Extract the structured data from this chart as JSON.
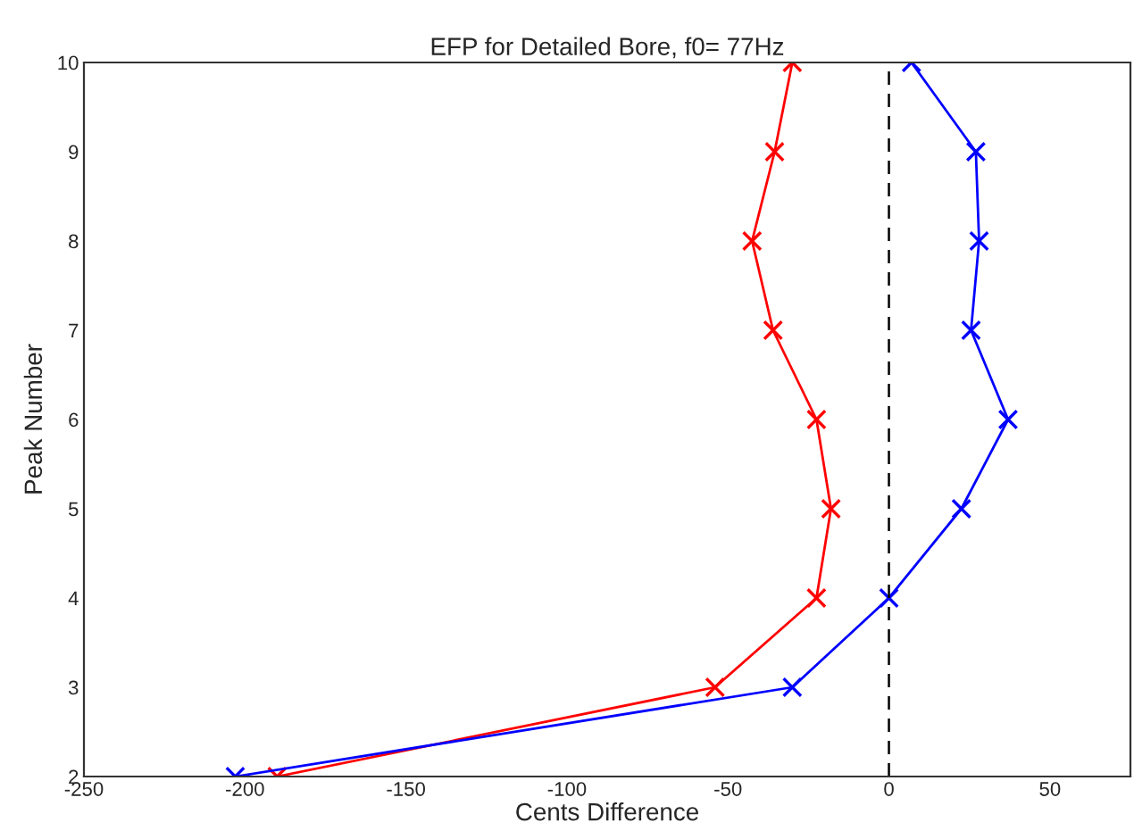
{
  "chart_data": {
    "type": "line",
    "title": "EFP for Detailed Bore, f0= 77Hz",
    "xlabel": "Cents Difference",
    "ylabel": "Peak Number",
    "orientation": "horizontal",
    "marker": "cross",
    "line_style": "solid",
    "grid": false,
    "xlim": [
      -250,
      75
    ],
    "xticks": [
      -250,
      -200,
      -150,
      -100,
      -50,
      0,
      50
    ],
    "ylim": [
      2,
      10
    ],
    "yticks": [
      2,
      3,
      4,
      5,
      6,
      7,
      8,
      9,
      10
    ],
    "ref_lines": [
      {
        "axis": "x",
        "value": 0,
        "color": "#000000",
        "line_style": "dashed"
      }
    ],
    "series": [
      {
        "color": "#ff0000",
        "x": [
          2,
          3,
          4,
          5,
          6,
          7,
          8,
          9,
          10
        ],
        "values": [
          -190,
          -54,
          -22.5,
          -18,
          -22.5,
          -36,
          -42.5,
          -35.5,
          -30
        ]
      },
      {
        "color": "#0000ff",
        "x": [
          2,
          3,
          4,
          5,
          6,
          7,
          8,
          9,
          10
        ],
        "values": [
          -203,
          -30,
          0,
          22.5,
          37,
          25.5,
          28,
          27,
          7
        ]
      }
    ]
  }
}
